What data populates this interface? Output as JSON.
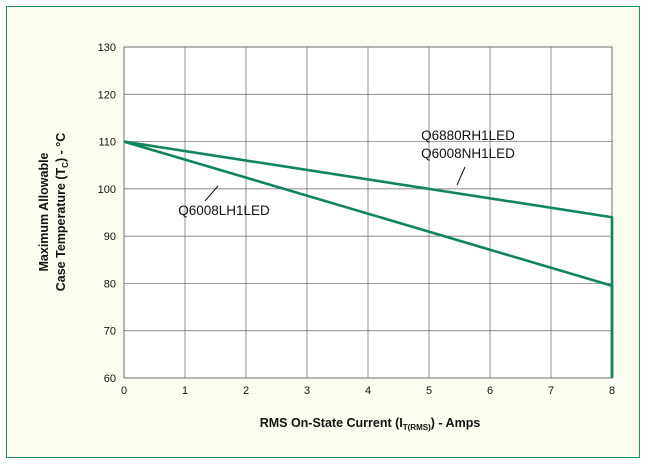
{
  "colors": {
    "frame": "#19945a",
    "frame_fill": "#fcfdf0",
    "series_line": "#10855a",
    "grid": "#666666",
    "plot_fill": "#ffffff"
  },
  "chart_data": {
    "type": "line",
    "title": "",
    "xlabel": {
      "main": "RMS On-State Current (I",
      "sub": "T(RMS)",
      "tail": ") - Amps"
    },
    "ylabel": {
      "line1": "Maximum Allowable",
      "line2_main": "Case Temperature (T",
      "line2_sub": "C",
      "line2_tail": ") - °C"
    },
    "xlim": [
      0,
      8
    ],
    "ylim": [
      60,
      130
    ],
    "x_ticks": [
      "0",
      "1",
      "2",
      "3",
      "4",
      "5",
      "6",
      "7",
      "8"
    ],
    "y_ticks": [
      "60",
      "70",
      "80",
      "90",
      "100",
      "110",
      "120",
      "130"
    ],
    "grid": true,
    "series": [
      {
        "label_lines": [
          "Q6880RH1LED",
          "Q6008NH1LED"
        ],
        "x": [
          0,
          8,
          8
        ],
        "y": [
          110,
          94,
          60
        ]
      },
      {
        "label_lines": [
          "Q6008LH1LED"
        ],
        "x": [
          0,
          8,
          8
        ],
        "y": [
          110,
          79.5,
          60
        ]
      }
    ]
  }
}
